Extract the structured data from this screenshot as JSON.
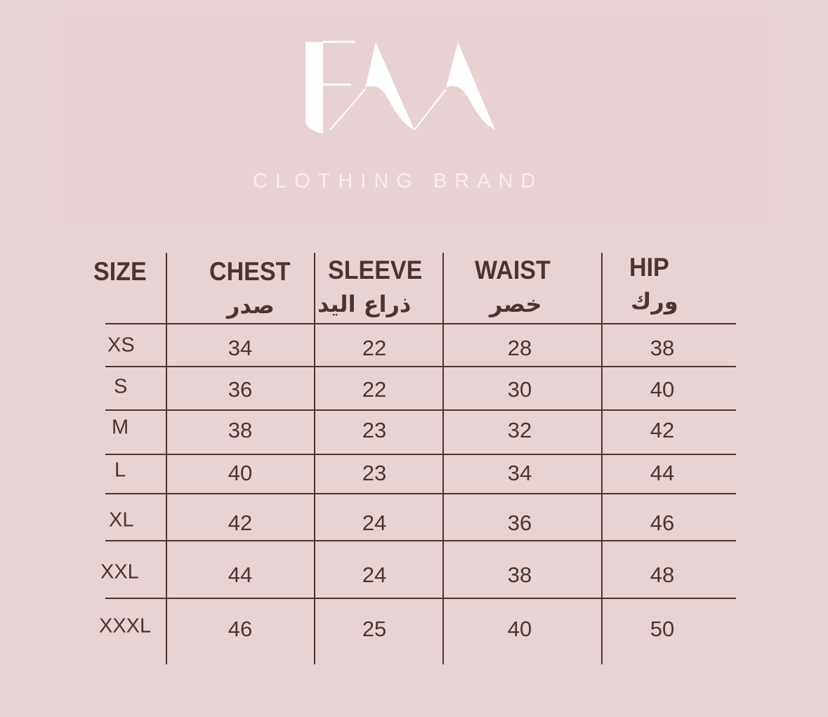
{
  "brand": {
    "logo_text": "FAA",
    "subtitle": "CLOTHING BRAND"
  },
  "table": {
    "headers": [
      {
        "en": "SIZE",
        "ar": ""
      },
      {
        "en": "CHEST",
        "ar": "صدر"
      },
      {
        "en": "SLEEVE",
        "ar": "ذراع اليد"
      },
      {
        "en": "WAIST",
        "ar": "خصر"
      },
      {
        "en": "HIP",
        "ar": "ورك"
      }
    ],
    "rows": [
      {
        "size": "XS",
        "chest": "34",
        "sleeve": "22",
        "waist": "28",
        "hip": "38"
      },
      {
        "size": "S",
        "chest": "36",
        "sleeve": "22",
        "waist": "30",
        "hip": "40"
      },
      {
        "size": "M",
        "chest": "38",
        "sleeve": "23",
        "waist": "32",
        "hip": "42"
      },
      {
        "size": "L",
        "chest": "40",
        "sleeve": "23",
        "waist": "34",
        "hip": "44"
      },
      {
        "size": "XL",
        "chest": "42",
        "sleeve": "24",
        "waist": "36",
        "hip": "46"
      },
      {
        "size": "XXL",
        "chest": "44",
        "sleeve": "24",
        "waist": "38",
        "hip": "48"
      },
      {
        "size": "XXXL",
        "chest": "46",
        "sleeve": "25",
        "waist": "40",
        "hip": "50"
      }
    ]
  },
  "colors": {
    "background": "#e8d3d4",
    "text": "#4a3530",
    "logo": "#ffffff"
  }
}
